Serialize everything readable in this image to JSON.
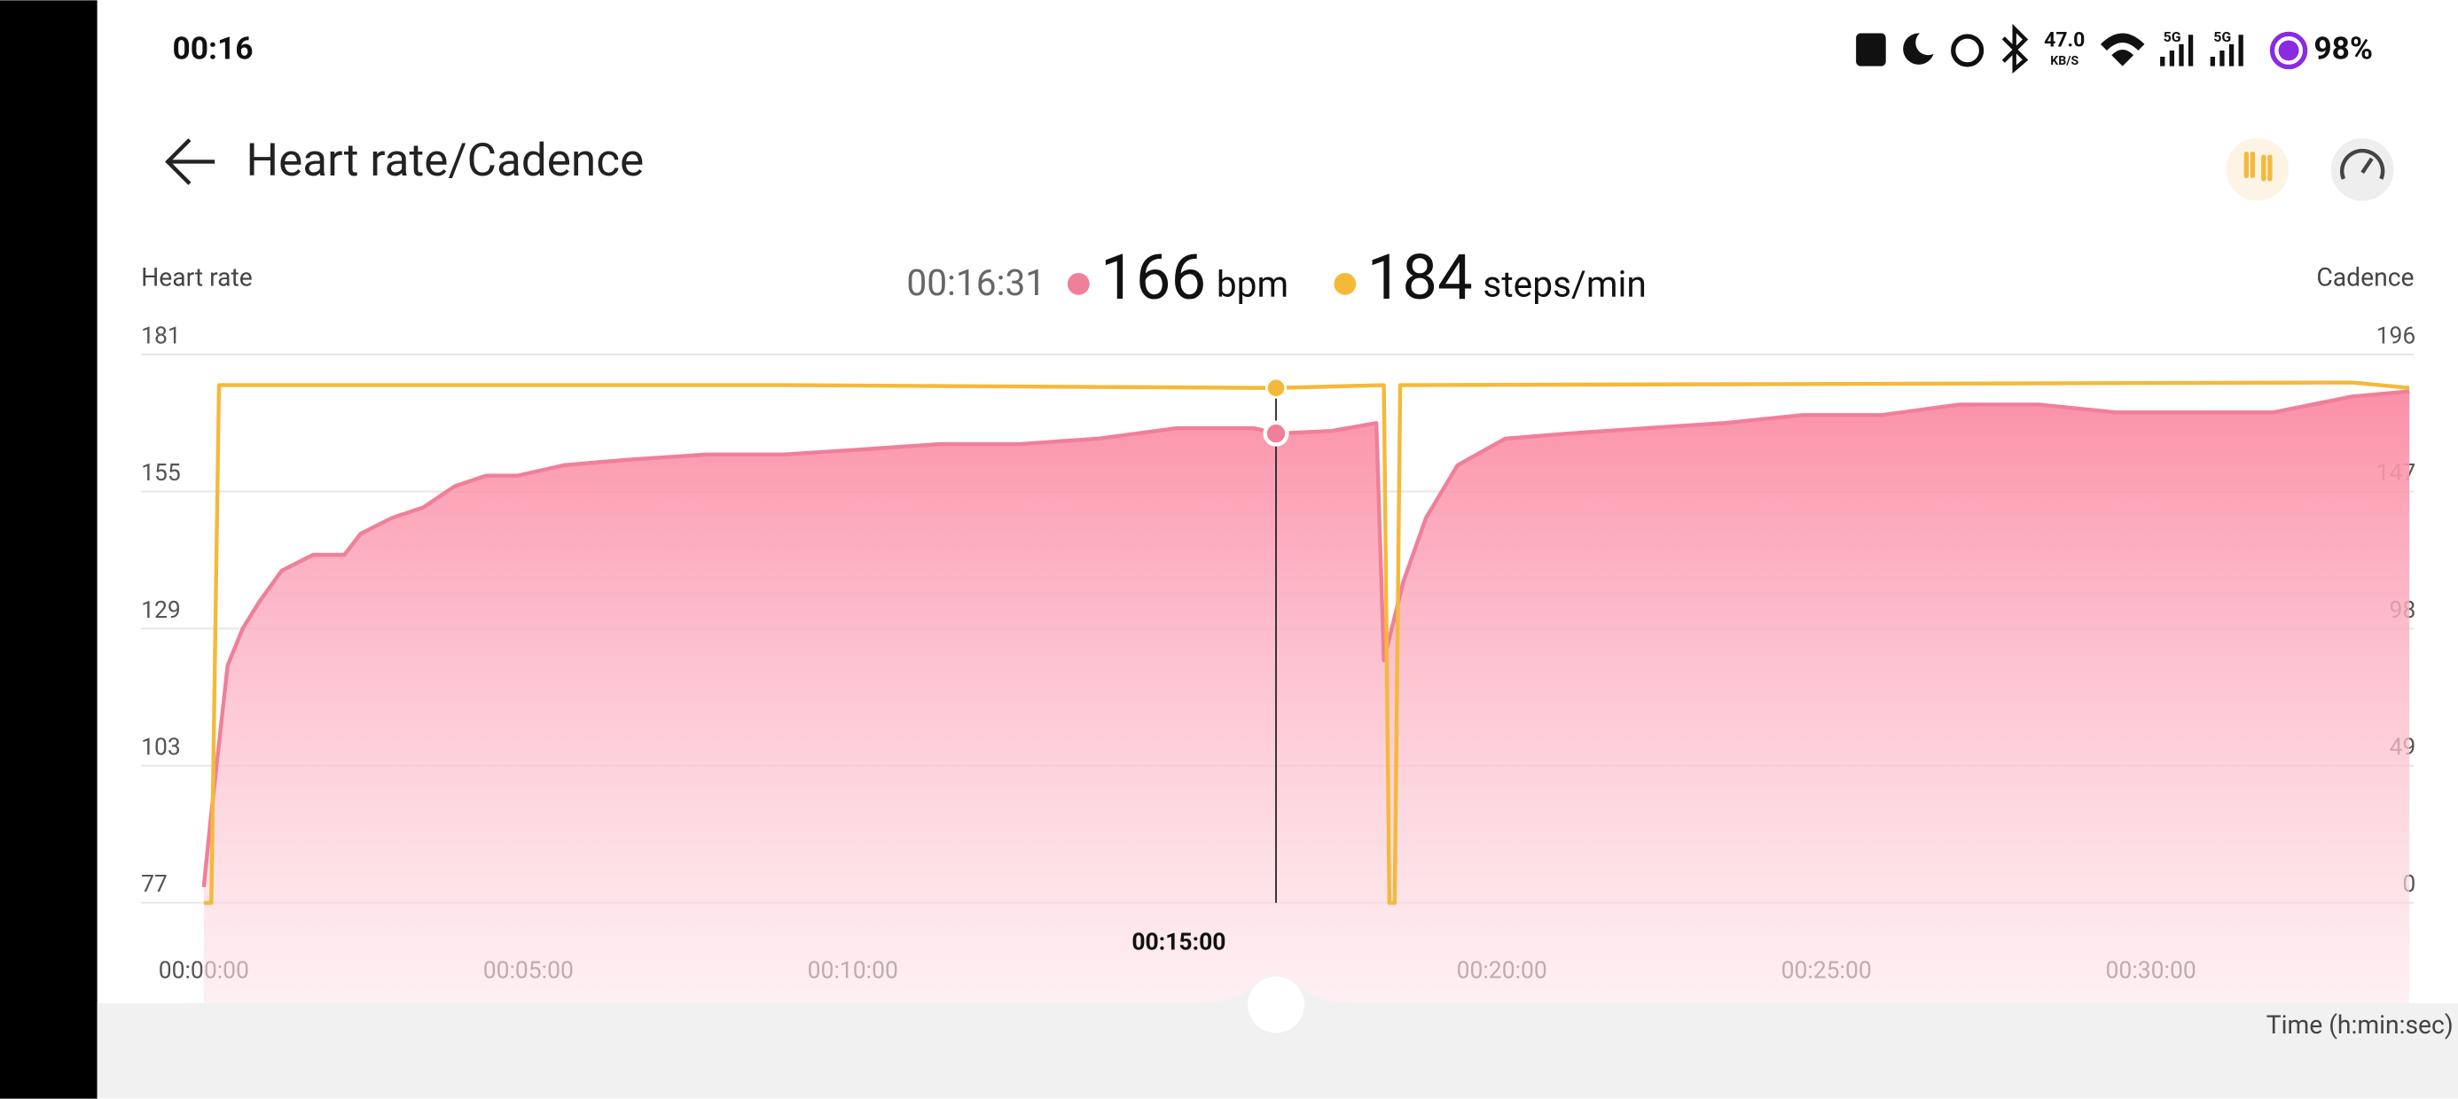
{
  "status_bar": {
    "time": "00:16",
    "net_speed": "47.0",
    "net_unit": "KB/S",
    "signal_1": "5G",
    "signal_2": "5G",
    "battery": "98%"
  },
  "header": {
    "title": "Heart rate/Cadence"
  },
  "readout": {
    "time": "00:16:31",
    "hr": 166,
    "hr_unit": "bpm",
    "cadence": 184,
    "cadence_unit": "steps/min"
  },
  "scrubber_label": "00:15:00",
  "chart_data": {
    "type": "line",
    "x_label": "Time (h:min:sec)",
    "xlim": [
      0,
      2039
    ],
    "xticks": [
      {
        "value": 0,
        "label": "00:00:00"
      },
      {
        "value": 300,
        "label": "00:05:00"
      },
      {
        "value": 600,
        "label": "00:10:00"
      },
      {
        "value": 1200,
        "label": "00:20:00"
      },
      {
        "value": 1500,
        "label": "00:25:00"
      },
      {
        "value": 1800,
        "label": "00:30:00"
      }
    ],
    "ylim": [
      77,
      181
    ],
    "yticks": [
      77,
      103,
      129,
      155,
      181
    ],
    "y2lim": [
      0,
      196
    ],
    "y2ticks": [
      0,
      49,
      98,
      147,
      196
    ],
    "grid": true,
    "series": [
      {
        "name": "Heart rate",
        "color": "#f07f9a",
        "area": true,
        "x": [
          0,
          7,
          22,
          36,
          51,
          72,
          101,
          130,
          145,
          174,
          203,
          232,
          261,
          290,
          333,
          391,
          464,
          536,
          609,
          681,
          754,
          826,
          899,
          971,
          991,
          1043,
          1084,
          1091,
          1109,
          1130,
          1159,
          1203,
          1261,
          1333,
          1406,
          1478,
          1551,
          1623,
          1696,
          1768,
          1841,
          1913,
          1986,
          2039
        ],
        "values": [
          80,
          94,
          122,
          129,
          134,
          140,
          143,
          143,
          147,
          150,
          152,
          156,
          158,
          158,
          160,
          161,
          162,
          162,
          163,
          164,
          164,
          165,
          167,
          167,
          166,
          166.5,
          168,
          123,
          138,
          150,
          160,
          165,
          166,
          167,
          168,
          169.5,
          169.5,
          171.5,
          171.5,
          170,
          170,
          170,
          173,
          174
        ]
      },
      {
        "name": "Cadence",
        "color": "#f5b93a",
        "axis": "y2",
        "x": [
          0,
          7,
          14,
          536,
          991,
          1091,
          1096,
          1101,
          1106,
          1986,
          2039
        ],
        "values": [
          0,
          0,
          185,
          185,
          184,
          185,
          0,
          0,
          185,
          186,
          184
        ]
      }
    ]
  }
}
